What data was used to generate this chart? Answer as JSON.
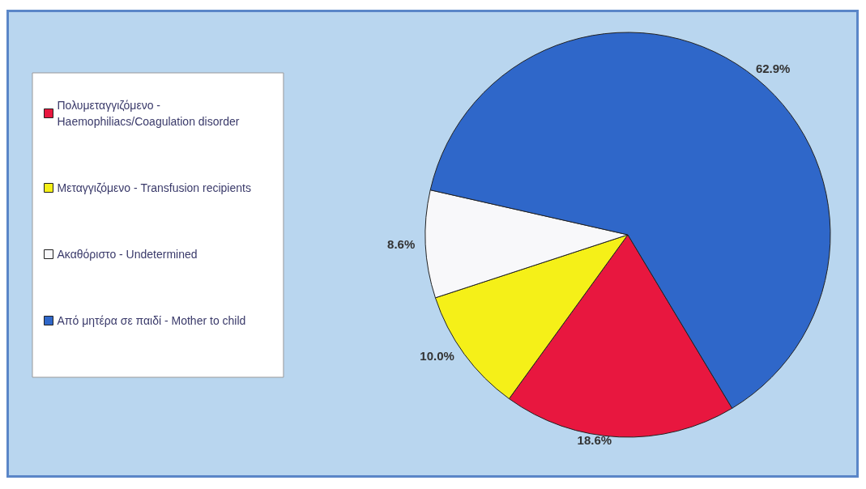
{
  "chart_data": {
    "type": "pie",
    "categories": [
      "Πολυμεταγγιζόμενο -\nHaemophiliacs/Coagulation disorder",
      "Μεταγγιζόμενο - Transfusion recipients",
      "Ακαθόριστο - Undetermined",
      "Από μητέρα σε παιδί - Mother to child"
    ],
    "values": [
      18.6,
      10.0,
      8.6,
      62.9
    ],
    "value_labels": [
      "18.6%",
      "10.0%",
      "8.6%",
      "62.9%"
    ],
    "colors": [
      "#e8173f",
      "#f5f018",
      "#f8f8fa",
      "#2f67c9"
    ],
    "legend": "left"
  }
}
